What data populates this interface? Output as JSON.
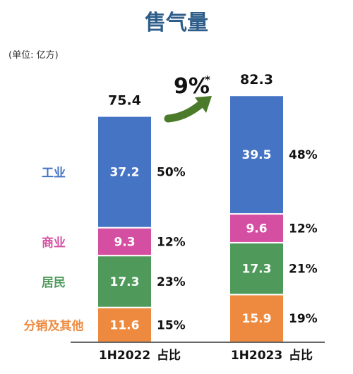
{
  "title": "售气量",
  "unit_note": "(单位: 亿方)",
  "growth": {
    "value": "9%",
    "mark": "*"
  },
  "colors": {
    "title": "#2e5d8a",
    "axis": "#333333",
    "arrow": "#4a7a2a"
  },
  "chart_data": {
    "type": "bar",
    "stacked": true,
    "categories": [
      "1H2022",
      "1H2023"
    ],
    "share_label": "占比",
    "totals": [
      "75.4",
      "82.3"
    ],
    "series": [
      {
        "name": "分销及其他",
        "color": "#ed8a3f",
        "values": [
          11.6,
          15.9
        ],
        "labels": [
          "11.6",
          "15.9"
        ],
        "shares": [
          "15%",
          "19%"
        ]
      },
      {
        "name": "居民",
        "color": "#4f9a5a",
        "values": [
          17.3,
          17.3
        ],
        "labels": [
          "17.3",
          "17.3"
        ],
        "shares": [
          "23%",
          "21%"
        ]
      },
      {
        "name": "商业",
        "color": "#d44fa2",
        "values": [
          9.3,
          9.6
        ],
        "labels": [
          "9.3",
          "9.6"
        ],
        "shares": [
          "12%",
          "12%"
        ]
      },
      {
        "name": "工业",
        "color": "#4574c4",
        "values": [
          37.2,
          39.5
        ],
        "labels": [
          "37.2",
          "39.5"
        ],
        "shares": [
          "50%",
          "48%"
        ]
      }
    ]
  }
}
